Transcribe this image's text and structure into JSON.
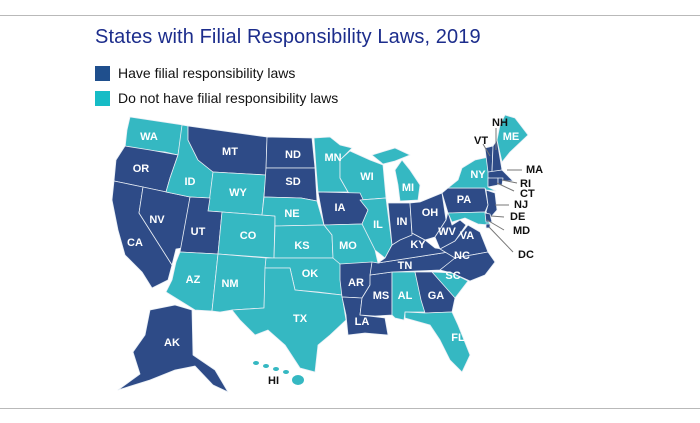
{
  "title": "States with Filial Responsibility Laws, 2019",
  "legend": [
    {
      "label": "Have filial responsibility laws",
      "color": "#1f4f8d"
    },
    {
      "label": "Do not have filial responsibility laws",
      "color": "#16bcc6"
    }
  ],
  "colors": {
    "have": "#2e4b87",
    "not": "#35b8c2"
  },
  "states": [
    {
      "abbr": "WA",
      "has_law": false
    },
    {
      "abbr": "OR",
      "has_law": true
    },
    {
      "abbr": "CA",
      "has_law": true
    },
    {
      "abbr": "NV",
      "has_law": true
    },
    {
      "abbr": "ID",
      "has_law": false
    },
    {
      "abbr": "MT",
      "has_law": true
    },
    {
      "abbr": "WY",
      "has_law": false
    },
    {
      "abbr": "UT",
      "has_law": true
    },
    {
      "abbr": "CO",
      "has_law": false
    },
    {
      "abbr": "AZ",
      "has_law": false
    },
    {
      "abbr": "NM",
      "has_law": false
    },
    {
      "abbr": "ND",
      "has_law": true
    },
    {
      "abbr": "SD",
      "has_law": true
    },
    {
      "abbr": "NE",
      "has_law": false
    },
    {
      "abbr": "KS",
      "has_law": false
    },
    {
      "abbr": "OK",
      "has_law": false
    },
    {
      "abbr": "TX",
      "has_law": false
    },
    {
      "abbr": "AK",
      "has_law": true
    },
    {
      "abbr": "HI",
      "has_law": false
    },
    {
      "abbr": "MN",
      "has_law": false
    },
    {
      "abbr": "WI",
      "has_law": false
    },
    {
      "abbr": "MI",
      "has_law": false
    },
    {
      "abbr": "IA",
      "has_law": true
    },
    {
      "abbr": "IL",
      "has_law": false
    },
    {
      "abbr": "MO",
      "has_law": false
    },
    {
      "abbr": "AR",
      "has_law": true
    },
    {
      "abbr": "LA",
      "has_law": true
    },
    {
      "abbr": "MS",
      "has_law": true
    },
    {
      "abbr": "AL",
      "has_law": false
    },
    {
      "abbr": "TN",
      "has_law": true
    },
    {
      "abbr": "KY",
      "has_law": true
    },
    {
      "abbr": "IN",
      "has_law": true
    },
    {
      "abbr": "OH",
      "has_law": true
    },
    {
      "abbr": "WV",
      "has_law": true
    },
    {
      "abbr": "VA",
      "has_law": true
    },
    {
      "abbr": "NC",
      "has_law": true
    },
    {
      "abbr": "SC",
      "has_law": false
    },
    {
      "abbr": "GA",
      "has_law": true
    },
    {
      "abbr": "FL",
      "has_law": false
    },
    {
      "abbr": "PA",
      "has_law": true
    },
    {
      "abbr": "NY",
      "has_law": false
    },
    {
      "abbr": "NJ",
      "has_law": true
    },
    {
      "abbr": "MD",
      "has_law": false
    },
    {
      "abbr": "DE",
      "has_law": true
    },
    {
      "abbr": "DC",
      "has_law": true
    },
    {
      "abbr": "VT",
      "has_law": true
    },
    {
      "abbr": "NH",
      "has_law": true
    },
    {
      "abbr": "ME",
      "has_law": false
    },
    {
      "abbr": "MA",
      "has_law": true
    },
    {
      "abbr": "CT",
      "has_law": true
    },
    {
      "abbr": "RI",
      "has_law": true
    }
  ]
}
